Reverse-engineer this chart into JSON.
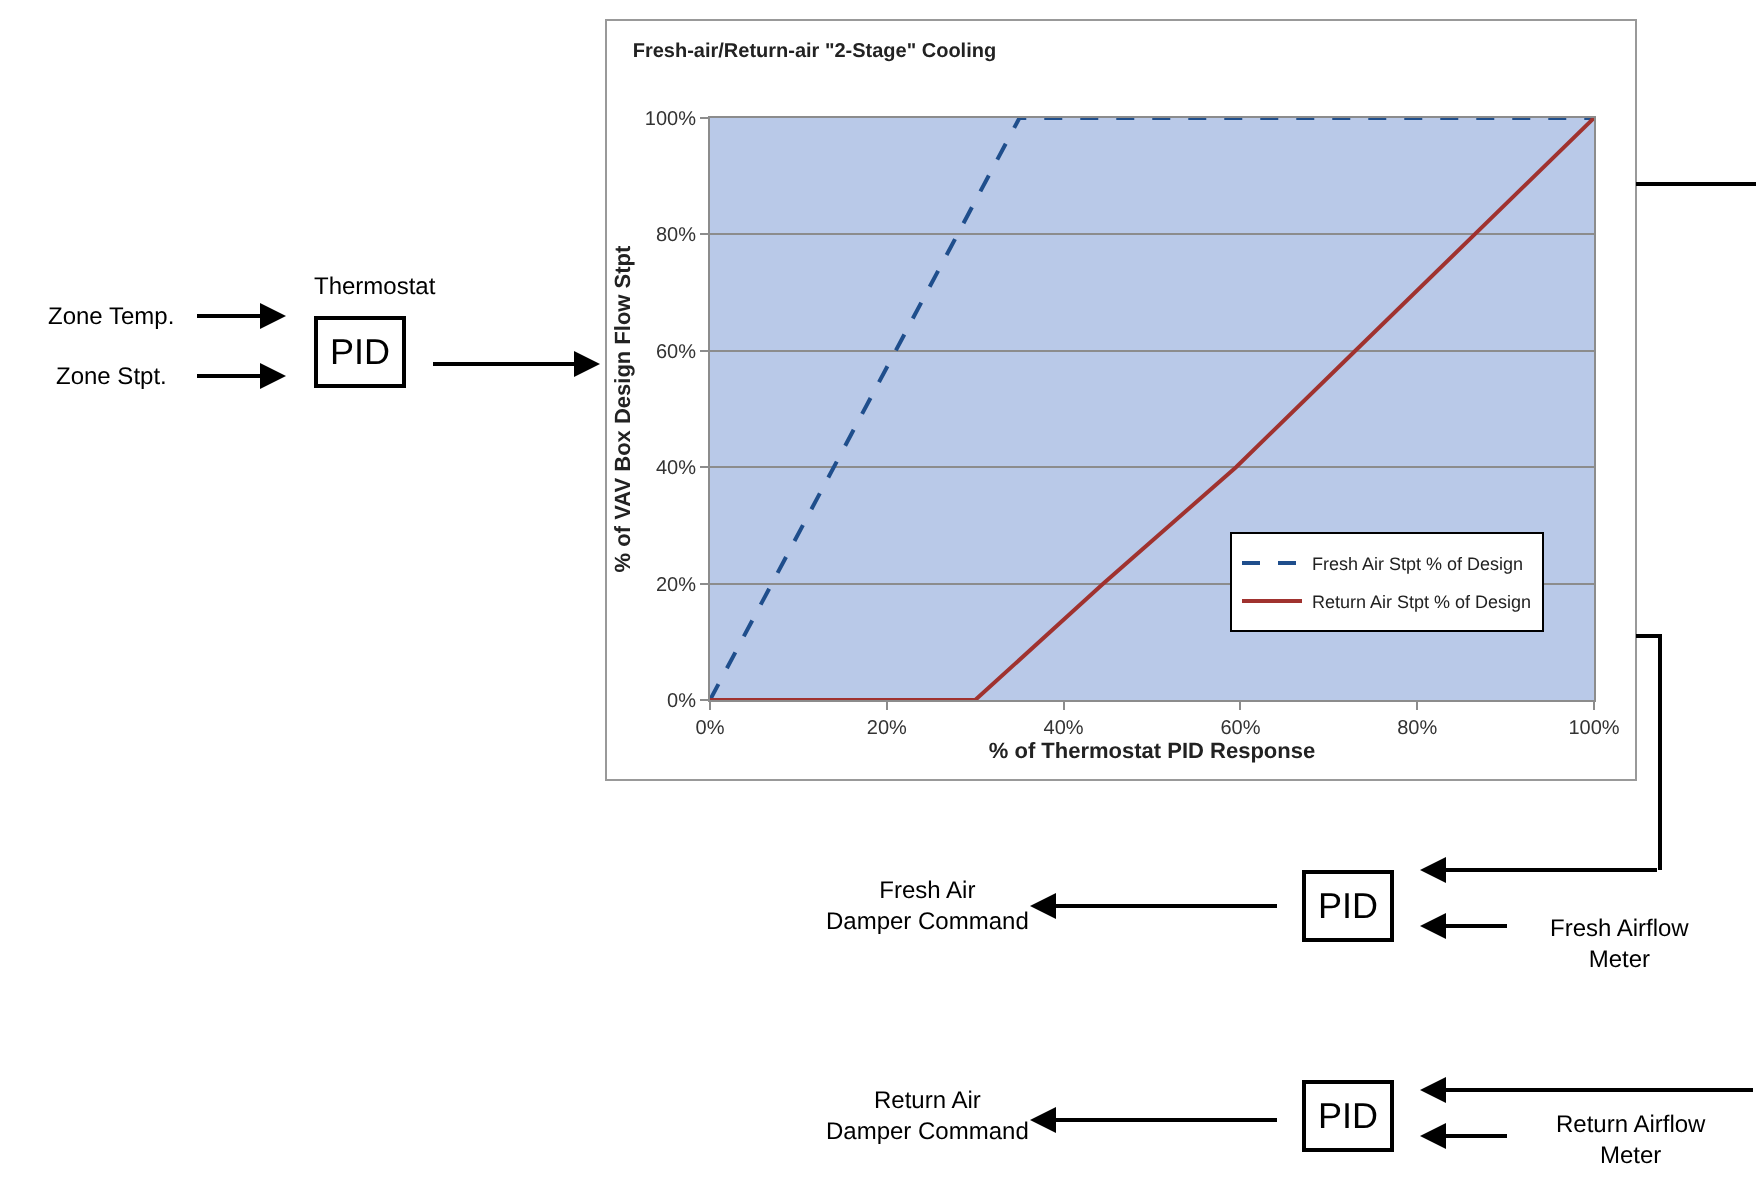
{
  "chart_data": {
    "type": "line",
    "title": "Fresh-air/Return-air \"2-Stage\" Cooling",
    "xlabel": "% of Thermostat PID Response",
    "ylabel": "% of VAV Box Design Flow Stpt",
    "series": [
      {
        "name": "Fresh Air Stpt % of Design",
        "color": "#1f4e8c",
        "line_style": "dashed",
        "x": [
          0,
          35,
          100
        ],
        "values": [
          0,
          100,
          100
        ]
      },
      {
        "name": "Return Air Stpt % of Design",
        "color": "#a0322f",
        "line_style": "solid",
        "x": [
          0,
          30,
          44.5,
          59.5,
          73,
          86.5,
          100
        ],
        "values": [
          0,
          0,
          20,
          40,
          60,
          80,
          100
        ]
      }
    ],
    "xlim": [
      0,
      100
    ],
    "ylim": [
      0,
      100
    ],
    "xticks": [
      {
        "value": 0,
        "label": "0%"
      },
      {
        "value": 20,
        "label": "20%"
      },
      {
        "value": 40,
        "label": "40%"
      },
      {
        "value": 60,
        "label": "60%"
      },
      {
        "value": 80,
        "label": "80%"
      },
      {
        "value": 100,
        "label": "100%"
      }
    ],
    "yticks": [
      {
        "value": 0,
        "label": "0%"
      },
      {
        "value": 20,
        "label": "20%"
      },
      {
        "value": 40,
        "label": "40%"
      },
      {
        "value": 60,
        "label": "60%"
      },
      {
        "value": 80,
        "label": "80%"
      },
      {
        "value": 100,
        "label": "100%"
      }
    ],
    "grid": "y",
    "legend": "bottom right",
    "annotations": [
      "Thermostat",
      "Zone Temp.",
      "Zone Stpt.",
      "PID",
      "PID",
      "PID",
      "Fresh Air\nDamper Command",
      "Fresh Airflow\nMeter",
      "Return Air\nDamper Command",
      "Return Airflow\nMeter"
    ]
  }
}
